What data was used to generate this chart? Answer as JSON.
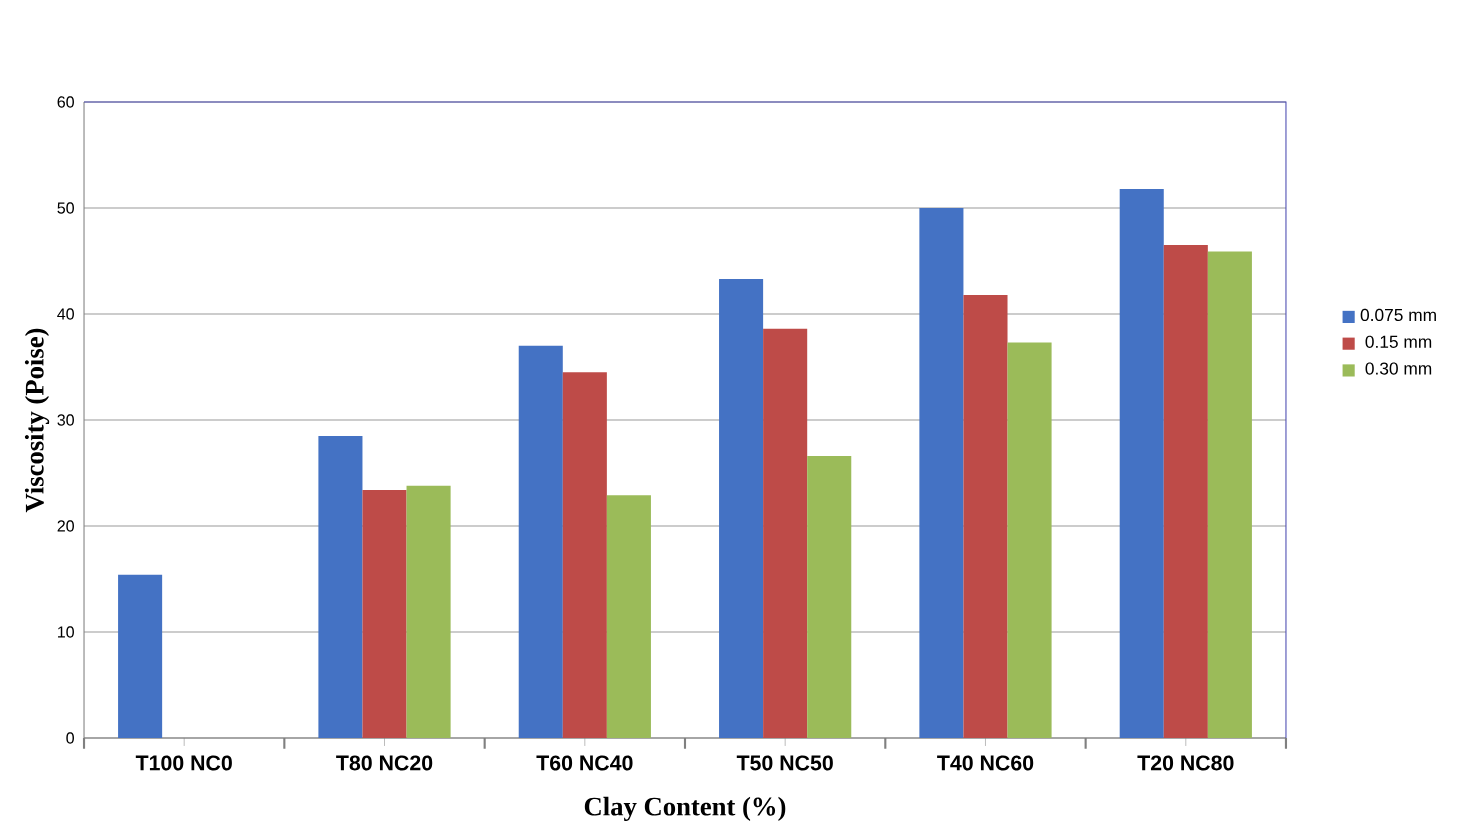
{
  "chart_data": {
    "type": "bar",
    "xlabel": "Clay Content (%)",
    "ylabel": "Viscosity (Poise)",
    "categories": [
      "T100 NC0",
      "T80 NC20",
      "T60 NC40",
      "T50 NC50",
      "T40 NC60",
      "T20 NC80"
    ],
    "series": [
      {
        "name": "0.075 mm",
        "color": "#4472c4",
        "values": [
          15.4,
          28.5,
          37.0,
          43.3,
          50.0,
          51.8
        ]
      },
      {
        "name": "0.15 mm",
        "color": "#be4b48",
        "values": [
          null,
          23.4,
          34.5,
          38.6,
          41.8,
          46.5
        ]
      },
      {
        "name": "0.30 mm",
        "color": "#9bbb59",
        "values": [
          null,
          23.8,
          22.9,
          26.6,
          37.3,
          45.9
        ]
      }
    ],
    "ylim": [
      0,
      60
    ],
    "yticks": [
      0,
      10,
      20,
      30,
      40,
      50,
      60
    ],
    "grid": "y",
    "legend": "right"
  }
}
